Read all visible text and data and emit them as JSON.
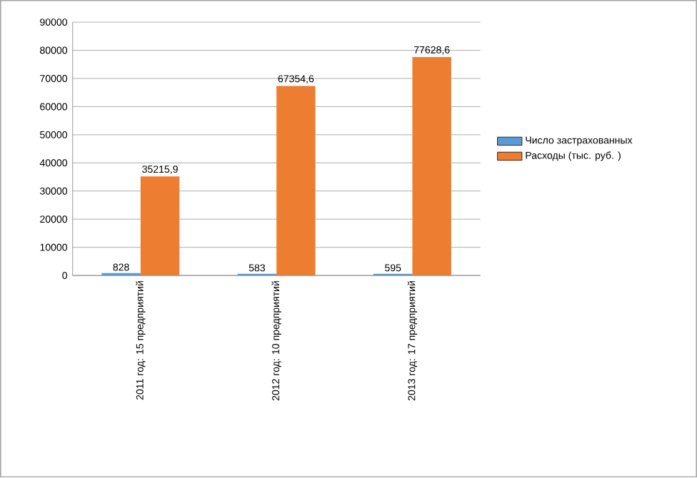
{
  "chart_data": {
    "type": "bar",
    "categories": [
      "2011 год: 15 предприятий",
      "2012 год: 10 предприятий",
      "2013 год: 17 предприятий"
    ],
    "series": [
      {
        "name": "Число  застрахованных",
        "color": "#5b9bd5",
        "values": [
          828,
          583,
          595
        ],
        "value_labels": [
          "828",
          "583",
          "595"
        ]
      },
      {
        "name": "Расходы  (тыс. руб. )",
        "color": "#ed7d31",
        "values": [
          35215.9,
          67354.6,
          77628.6
        ],
        "value_labels": [
          "35215,9",
          "67354,6",
          "77628,6"
        ]
      }
    ],
    "ylim": [
      0,
      90000
    ],
    "yticks": [
      0,
      10000,
      20000,
      30000,
      40000,
      50000,
      60000,
      70000,
      80000,
      90000
    ],
    "grid": "y",
    "legend": "right"
  }
}
